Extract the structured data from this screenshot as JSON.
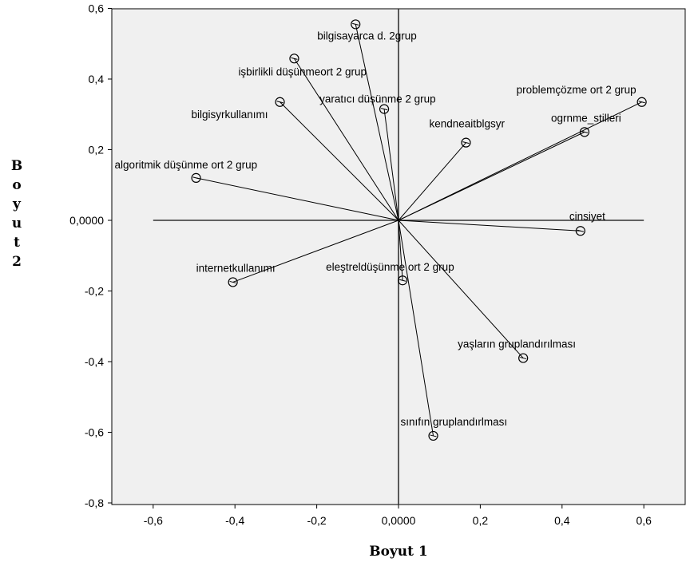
{
  "chart_data": {
    "type": "scatter",
    "xlabel": "Boyut 1",
    "ylabel": "Boyut 2",
    "xlim": [
      -0.7,
      0.7
    ],
    "ylim": [
      -0.8,
      0.6
    ],
    "xticks": [
      "-0,6",
      "-0,4",
      "-0,2",
      "0,0000",
      "0,2",
      "0,4",
      "0,6"
    ],
    "xtick_values": [
      -0.6,
      -0.4,
      -0.2,
      0.0,
      0.2,
      0.4,
      0.6
    ],
    "yticks": [
      "0,6",
      "0,4",
      "0,2",
      "0,0000",
      "-0,2",
      "-0,4",
      "-0,6",
      "-0,8"
    ],
    "ytick_values": [
      0.6,
      0.4,
      0.2,
      0.0,
      -0.2,
      -0.4,
      -0.6,
      -0.8
    ],
    "reference_lines": {
      "x_extent": [
        -0.6,
        0.6
      ]
    },
    "points": [
      {
        "label": "bilgisayarca d. 2grup",
        "x": -0.105,
        "y": 0.555
      },
      {
        "label": "işbirlikli düşünmeort 2 grup",
        "x": -0.255,
        "y": 0.458
      },
      {
        "label": "yaratıcı düşünme 2 grup",
        "x": -0.035,
        "y": 0.315
      },
      {
        "label": "bilgisyrkullanımı",
        "x": -0.29,
        "y": 0.335
      },
      {
        "label": "kendneaitblgsyr",
        "x": 0.165,
        "y": 0.22
      },
      {
        "label": "problemçözme ort 2 grup",
        "x": 0.595,
        "y": 0.335
      },
      {
        "label": "ogrnme_stilleri",
        "x": 0.455,
        "y": 0.25
      },
      {
        "label": "algoritmik düşünme ort 2 grup",
        "x": -0.495,
        "y": 0.12
      },
      {
        "label": "cinsiyet",
        "x": 0.445,
        "y": -0.03
      },
      {
        "label": "internetkullanımı",
        "x": -0.405,
        "y": -0.175
      },
      {
        "label": "eleştreldüşünme ort 2 grup",
        "x": 0.01,
        "y": -0.17
      },
      {
        "label": "yaşların gruplandırılması",
        "x": 0.305,
        "y": -0.39
      },
      {
        "label": "sınıfın gruplandırlması",
        "x": 0.085,
        "y": -0.61
      }
    ]
  }
}
